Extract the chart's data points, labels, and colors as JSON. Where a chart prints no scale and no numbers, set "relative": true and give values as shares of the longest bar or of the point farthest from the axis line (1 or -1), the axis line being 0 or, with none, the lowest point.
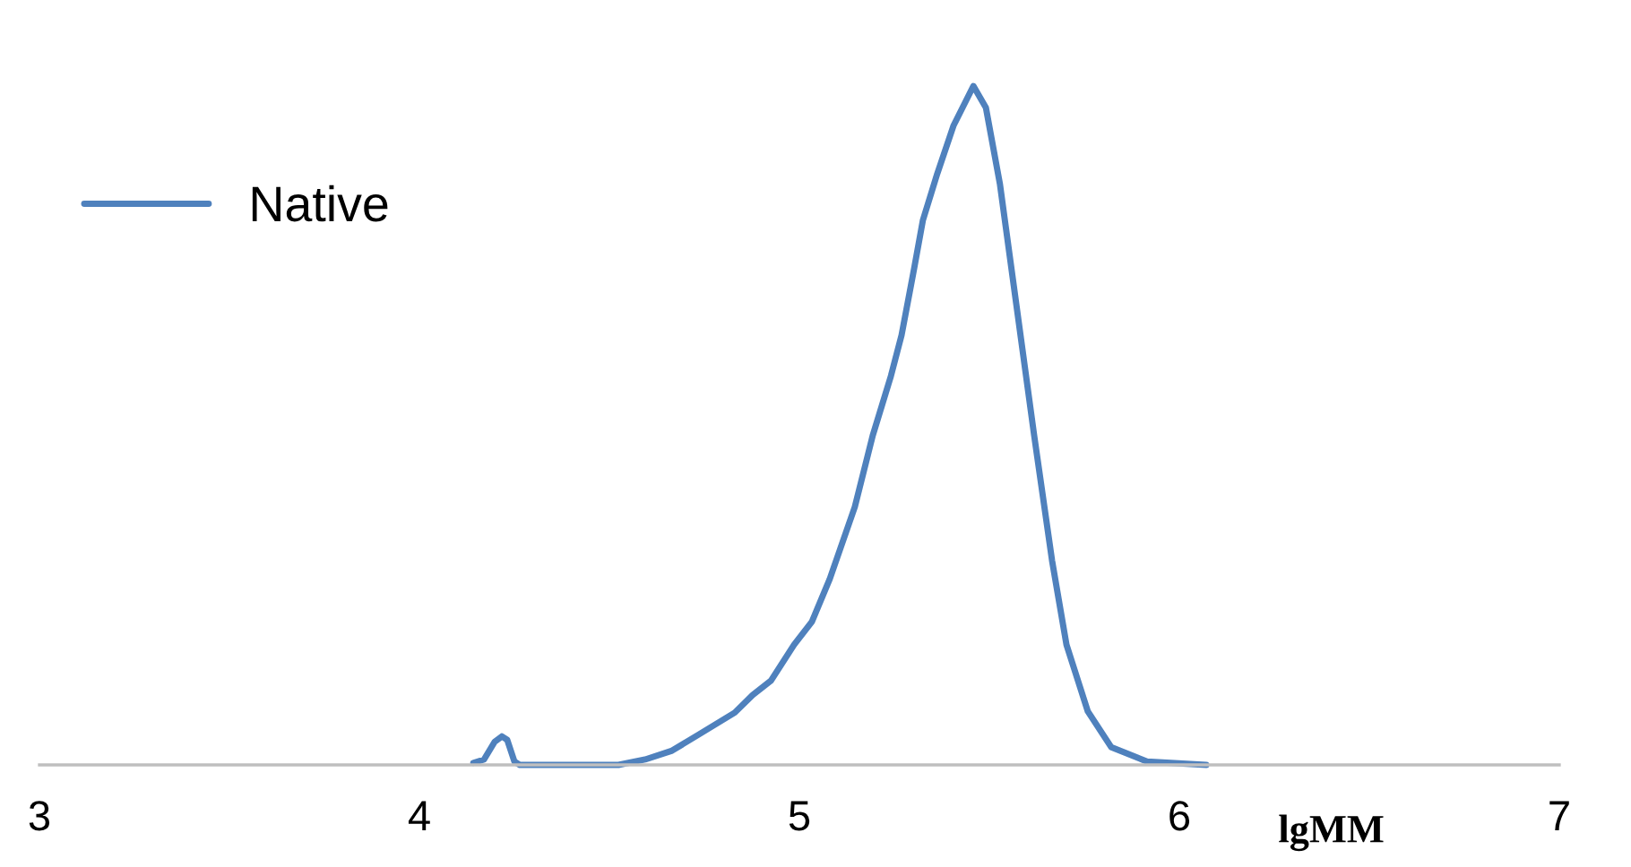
{
  "chart_data": {
    "type": "line",
    "relative": true,
    "xlabel": "lgMM",
    "xlim": [
      3,
      7
    ],
    "xticks": [
      3,
      4,
      5,
      6,
      7
    ],
    "legend": "top left",
    "grid": false,
    "marker": "none",
    "line_style": "solid",
    "series": [
      {
        "name": "Native",
        "color": "#4f81bd",
        "x": [
          4.142,
          4.17,
          4.198,
          4.217,
          4.231,
          4.25,
          4.264,
          4.524,
          4.594,
          4.665,
          4.736,
          4.83,
          4.877,
          4.925,
          4.986,
          5.033,
          5.08,
          5.146,
          5.193,
          5.241,
          5.269,
          5.302,
          5.325,
          5.363,
          5.406,
          5.458,
          5.491,
          5.528,
          5.571,
          5.618,
          5.665,
          5.703,
          5.759,
          5.821,
          5.915,
          6.071
        ],
        "values": [
          0.003,
          0.008,
          0.034,
          0.042,
          0.037,
          0.005,
          0,
          0,
          0.008,
          0.021,
          0.045,
          0.077,
          0.103,
          0.124,
          0.177,
          0.211,
          0.274,
          0.38,
          0.485,
          0.573,
          0.633,
          0.731,
          0.802,
          0.871,
          0.942,
          1,
          0.968,
          0.855,
          0.678,
          0.485,
          0.301,
          0.177,
          0.079,
          0.026,
          0.005,
          0
        ]
      }
    ]
  }
}
